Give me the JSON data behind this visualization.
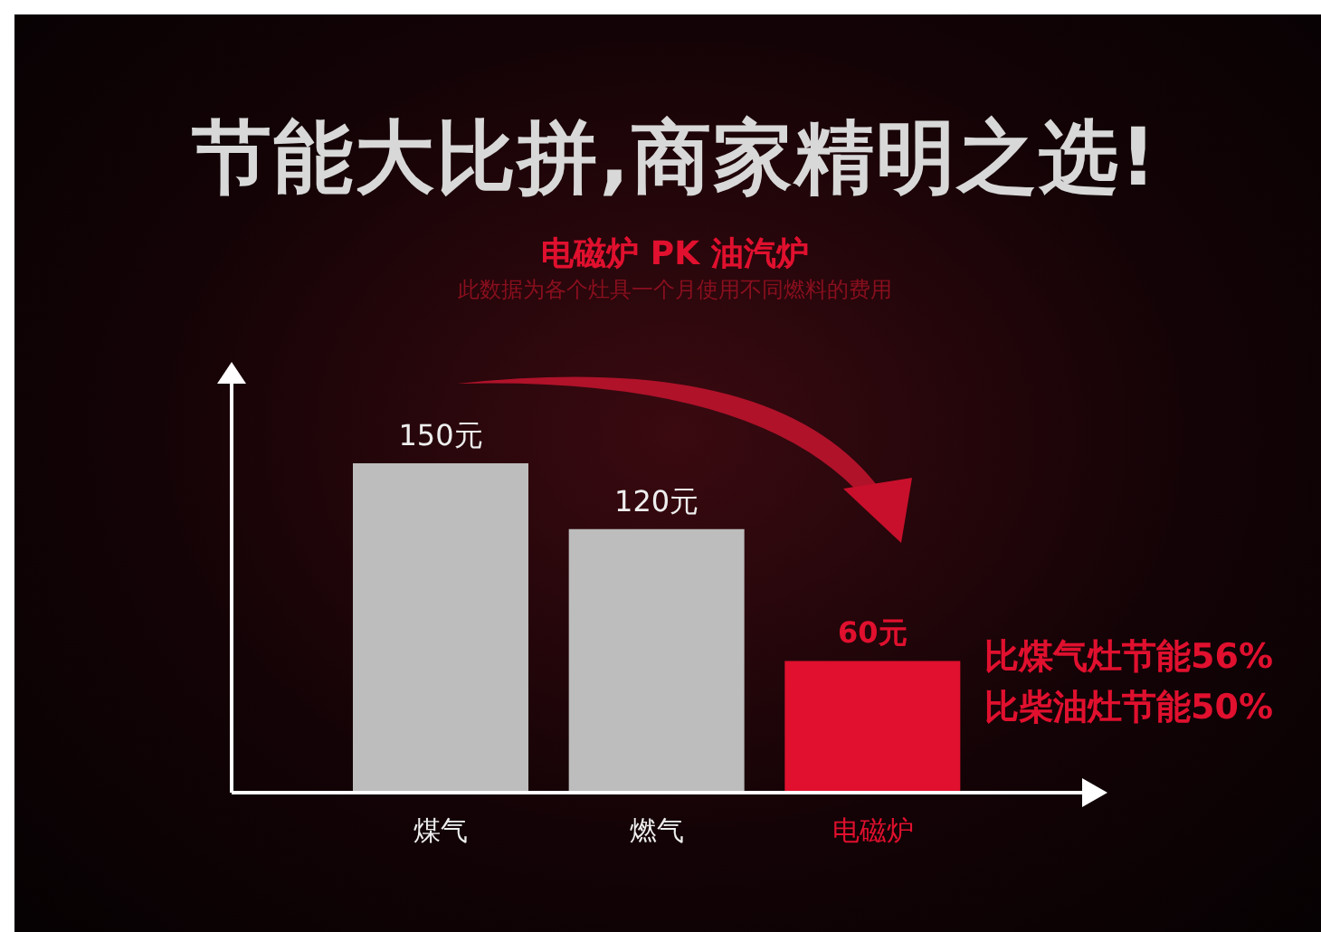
{
  "chart_data": {
    "type": "bar",
    "title": "节能大比拼,商家精明之选!",
    "subtitle": "电磁炉 PK 油汽炉",
    "annotations": [
      "此数据为各个灶具一个月使用不同燃料的费用",
      "比煤气灶节能56%",
      "比柴油灶节能50%"
    ],
    "categories": [
      "煤气",
      "燃气",
      "电磁炉"
    ],
    "values": [
      150,
      120,
      60
    ],
    "colors": [
      "#bdbdbd",
      "#bdbdbd",
      "#e0102e"
    ],
    "value_labels": [
      "150元",
      "120元",
      "60元"
    ]
  }
}
